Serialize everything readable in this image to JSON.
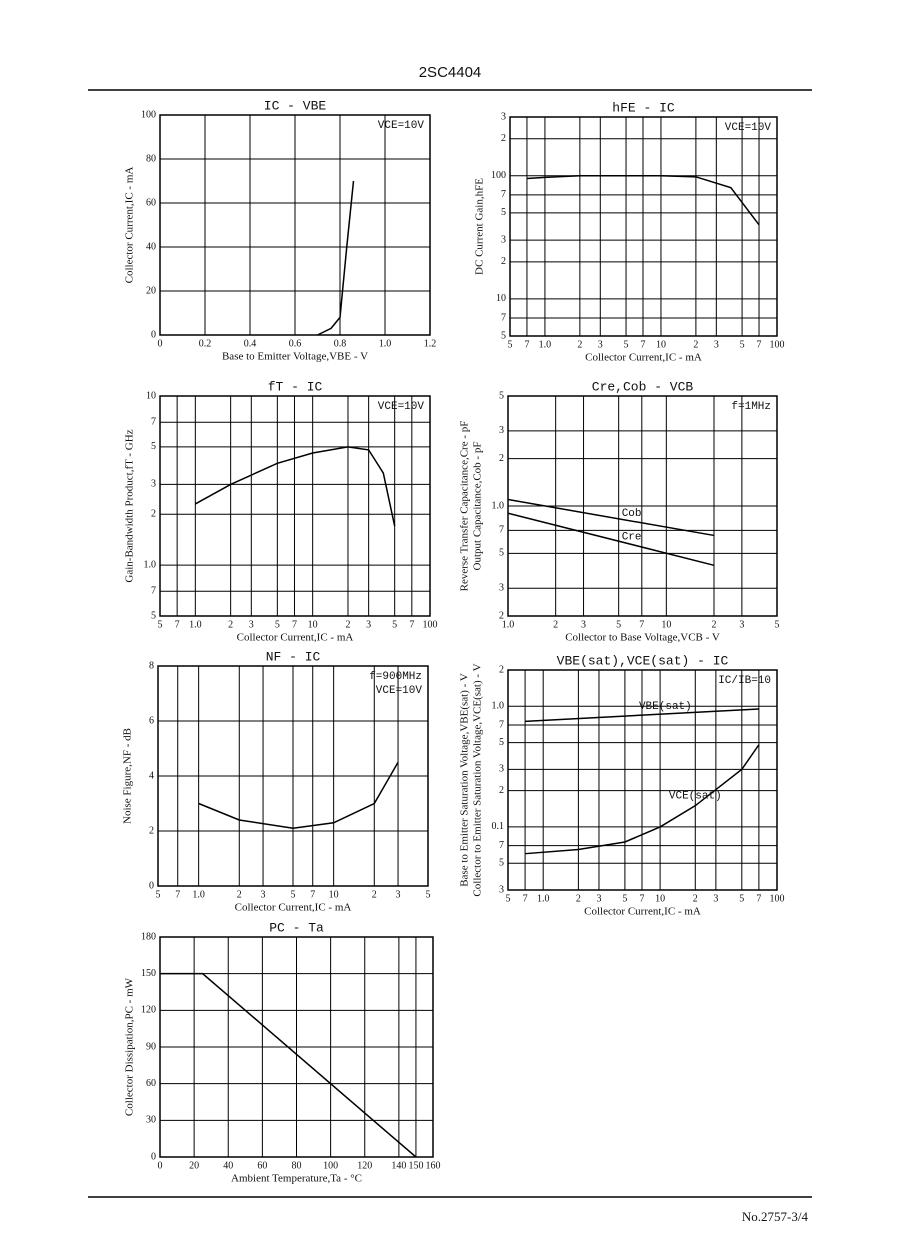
{
  "header": "2SC4404",
  "footer": "No.2757-3/4",
  "chart_data": [
    {
      "type": "line",
      "title": "IC - VBE",
      "annotations": [
        "VCE=10V"
      ],
      "xlabel": "Base to Emitter Voltage,VBE - V",
      "ylabel": [
        "Collector Current,IC - mA"
      ],
      "xlim": [
        0,
        1.2
      ],
      "xticks": [
        0,
        0.2,
        0.4,
        0.6,
        0.8,
        {
          "value": 1,
          "label": "1.0"
        },
        1.2
      ],
      "ylim": [
        0,
        100
      ],
      "yticks": [
        0,
        20,
        40,
        60,
        80,
        100
      ],
      "grid": true,
      "series": [
        {
          "color": "#000",
          "x": [
            0.7,
            0.76,
            0.8,
            0.83,
            0.86
          ],
          "values": [
            0,
            3,
            8,
            40,
            70
          ]
        }
      ]
    },
    {
      "type": "line",
      "title": "hFE - IC",
      "annotations": [
        "VCE=10V"
      ],
      "xlabel": "Collector Current,IC - mA",
      "ylabel": [
        "DC Current Gain,hFE"
      ],
      "xlog": true,
      "ylog": true,
      "xlim": [
        0.5,
        100
      ],
      "xticks": [
        {
          "value": 0.5,
          "label": "5"
        },
        {
          "value": 0.7,
          "label": "7"
        },
        {
          "value": 1,
          "label": "1.0"
        },
        2,
        3,
        5,
        7,
        10,
        {
          "value": 20,
          "label": "2"
        },
        {
          "value": 30,
          "label": "3"
        },
        {
          "value": 50,
          "label": "5"
        },
        {
          "value": 70,
          "label": "7"
        },
        100
      ],
      "ylim": [
        5,
        300
      ],
      "yticks": [
        5,
        7,
        10,
        {
          "value": 20,
          "label": "2"
        },
        {
          "value": 30,
          "label": "3"
        },
        {
          "value": 50,
          "label": "5"
        },
        {
          "value": 70,
          "label": "7"
        },
        100,
        {
          "value": 200,
          "label": "2"
        },
        {
          "value": 300,
          "label": "3"
        }
      ],
      "grid": true,
      "series": [
        {
          "color": "#000",
          "x": [
            0.7,
            1,
            2,
            5,
            10,
            20,
            40,
            70
          ],
          "values": [
            95,
            97,
            100,
            100,
            100,
            98,
            80,
            40
          ]
        }
      ]
    },
    {
      "type": "line",
      "title": "fT - IC",
      "annotations": [
        "VCE=10V"
      ],
      "xlabel": "Collector Current,IC - mA",
      "ylabel": [
        "Gain-Bandwidth Product,fT - GHz"
      ],
      "xlog": true,
      "ylog": true,
      "xlim": [
        0.5,
        100
      ],
      "xticks": [
        {
          "value": 0.5,
          "label": "5"
        },
        {
          "value": 0.7,
          "label": "7"
        },
        {
          "value": 1,
          "label": "1.0"
        },
        2,
        3,
        5,
        7,
        10,
        {
          "value": 20,
          "label": "2"
        },
        {
          "value": 30,
          "label": "3"
        },
        {
          "value": 50,
          "label": "5"
        },
        {
          "value": 70,
          "label": "7"
        },
        100
      ],
      "ylim": [
        0.5,
        10
      ],
      "yticks": [
        {
          "value": 0.5,
          "label": "5"
        },
        {
          "value": 0.7,
          "label": "7"
        },
        {
          "value": 1,
          "label": "1.0"
        },
        2,
        3,
        5,
        7,
        10
      ],
      "grid": true,
      "series": [
        {
          "color": "#000",
          "x": [
            1,
            2,
            5,
            10,
            20,
            30,
            40,
            50
          ],
          "values": [
            2.3,
            3,
            4,
            4.6,
            5,
            4.8,
            3.5,
            1.7
          ]
        }
      ]
    },
    {
      "type": "line",
      "title": "Cre,Cob - VCB",
      "annotations": [
        "f=1MHz"
      ],
      "xlabel": "Collector to Base Voltage,VCB - V",
      "ylabel": [
        "Reverse Transfer Capacitance,Cre - pF",
        "Output Capacitance,Cob - pF"
      ],
      "xlog": true,
      "ylog": true,
      "xlim": [
        1,
        50
      ],
      "xticks": [
        {
          "value": 1,
          "label": "1.0"
        },
        2,
        3,
        5,
        7,
        10,
        {
          "value": 20,
          "label": "2"
        },
        {
          "value": 30,
          "label": "3"
        },
        {
          "value": 50,
          "label": "5"
        }
      ],
      "ylim": [
        0.2,
        5
      ],
      "yticks": [
        {
          "value": 0.2,
          "label": "2"
        },
        {
          "value": 0.3,
          "label": "3"
        },
        {
          "value": 0.5,
          "label": "5"
        },
        {
          "value": 0.7,
          "label": "7"
        },
        {
          "value": 1,
          "label": "1.0"
        },
        2,
        3,
        5
      ],
      "grid": true,
      "series": [
        {
          "name": "Cob",
          "color": "#000",
          "x": [
            1,
            20
          ],
          "values": [
            1.1,
            0.65
          ]
        },
        {
          "name": "Cre",
          "color": "#000",
          "x": [
            1,
            20
          ],
          "values": [
            0.9,
            0.42
          ]
        }
      ]
    },
    {
      "type": "line",
      "title": "NF - IC",
      "annotations": [
        "f=900MHz",
        "VCE=10V"
      ],
      "xlabel": "Collector Current,IC - mA",
      "ylabel": [
        "Noise Figure,NF - dB"
      ],
      "xlog": true,
      "xlim": [
        0.5,
        50
      ],
      "xticks": [
        {
          "value": 0.5,
          "label": "5"
        },
        {
          "value": 0.7,
          "label": "7"
        },
        {
          "value": 1,
          "label": "1.0"
        },
        2,
        3,
        5,
        7,
        10,
        {
          "value": 20,
          "label": "2"
        },
        {
          "value": 30,
          "label": "3"
        },
        {
          "value": 50,
          "label": "5"
        }
      ],
      "ylim": [
        0,
        8
      ],
      "yticks": [
        0,
        2,
        4,
        6,
        8
      ],
      "grid": true,
      "series": [
        {
          "color": "#000",
          "x": [
            1,
            2,
            5,
            10,
            20,
            30
          ],
          "values": [
            3,
            2.4,
            2.1,
            2.3,
            3,
            4.5
          ]
        }
      ]
    },
    {
      "type": "line",
      "title": "VBE(sat),VCE(sat) - IC",
      "annotations": [
        "IC/IB=10"
      ],
      "xlabel": "Collector Current,IC - mA",
      "ylabel": [
        "Base to Emitter Saturation Voltage,VBE(sat) - V",
        "Collector to Emitter Saturation Voltage,VCE(sat) - V"
      ],
      "xlog": true,
      "ylog": true,
      "xlim": [
        0.5,
        100
      ],
      "xticks": [
        {
          "value": 0.5,
          "label": "5"
        },
        {
          "value": 0.7,
          "label": "7"
        },
        {
          "value": 1,
          "label": "1.0"
        },
        2,
        3,
        5,
        7,
        10,
        {
          "value": 20,
          "label": "2"
        },
        {
          "value": 30,
          "label": "3"
        },
        {
          "value": 50,
          "label": "5"
        },
        {
          "value": 70,
          "label": "7"
        },
        100
      ],
      "ylim": [
        0.03,
        2
      ],
      "yticks": [
        {
          "value": 0.03,
          "label": "3"
        },
        {
          "value": 0.05,
          "label": "5"
        },
        {
          "value": 0.07,
          "label": "7"
        },
        0.1,
        {
          "value": 0.2,
          "label": "2"
        },
        {
          "value": 0.3,
          "label": "3"
        },
        {
          "value": 0.5,
          "label": "5"
        },
        {
          "value": 0.7,
          "label": "7"
        },
        {
          "value": 1,
          "label": "1.0"
        },
        2
      ],
      "grid": true,
      "series": [
        {
          "name": "VBE(sat)",
          "color": "#000",
          "x": [
            0.7,
            70
          ],
          "values": [
            0.75,
            0.95
          ]
        },
        {
          "name": "VCE(sat)",
          "color": "#000",
          "x": [
            0.7,
            2,
            5,
            10,
            20,
            50,
            70
          ],
          "values": [
            0.06,
            0.065,
            0.075,
            0.1,
            0.15,
            0.3,
            0.48
          ]
        }
      ]
    },
    {
      "type": "line",
      "title": "PC - Ta",
      "annotations": [],
      "xlabel": "Ambient Temperature,Ta - °C",
      "ylabel": [
        "Collector Dissipation,PC - mW"
      ],
      "xlim": [
        0,
        160
      ],
      "xticks": [
        0,
        20,
        40,
        60,
        80,
        100,
        120,
        140,
        150,
        160
      ],
      "ylim": [
        0,
        180
      ],
      "yticks": [
        0,
        30,
        60,
        90,
        120,
        150,
        180
      ],
      "grid": true,
      "series": [
        {
          "color": "#000",
          "x": [
            0,
            25,
            150
          ],
          "values": [
            150,
            150,
            0
          ]
        }
      ]
    }
  ]
}
